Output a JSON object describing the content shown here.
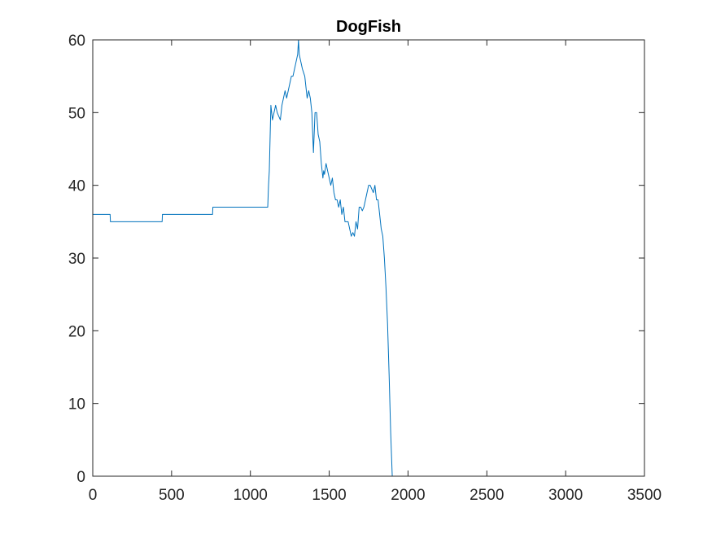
{
  "chart_data": {
    "type": "line",
    "title": "DogFish",
    "xlabel": "",
    "ylabel": "",
    "xlim": [
      0,
      3500
    ],
    "ylim": [
      0,
      60
    ],
    "xticks": [
      0,
      500,
      1000,
      1500,
      2000,
      2500,
      3000,
      3500
    ],
    "yticks": [
      0,
      10,
      20,
      30,
      40,
      50,
      60
    ],
    "xtick_labels": [
      "0",
      "500",
      "1000",
      "1500",
      "2000",
      "2500",
      "3000",
      "3500"
    ],
    "ytick_labels": [
      "0",
      "10",
      "20",
      "30",
      "40",
      "50",
      "60"
    ],
    "grid": false,
    "legend": "none",
    "colors": {
      "series": "#0072BD",
      "axes": "#262626",
      "background": "#ffffff"
    },
    "series": [
      {
        "x": [
          0,
          110,
          112,
          440,
          442,
          760,
          762,
          1110,
          1115,
          1120,
          1130,
          1140,
          1160,
          1170,
          1190,
          1200,
          1220,
          1230,
          1250,
          1260,
          1270,
          1280,
          1290,
          1300,
          1305,
          1310,
          1320,
          1330,
          1345,
          1360,
          1370,
          1380,
          1390,
          1400,
          1410,
          1420,
          1430,
          1440,
          1450,
          1460,
          1465,
          1470,
          1480,
          1490,
          1500,
          1510,
          1520,
          1530,
          1540,
          1550,
          1560,
          1570,
          1580,
          1590,
          1600,
          1610,
          1620,
          1630,
          1640,
          1650,
          1660,
          1670,
          1680,
          1690,
          1700,
          1710,
          1720,
          1730,
          1740,
          1750,
          1760,
          1770,
          1780,
          1790,
          1800,
          1810,
          1820,
          1830,
          1840,
          1850,
          1860,
          1870,
          1880,
          1890,
          1900,
          1910,
          1920,
          1930,
          1940,
          1950,
          1960,
          1970,
          1980,
          1990,
          2000,
          2010,
          2020,
          2030,
          2040,
          3080
        ],
        "values": [
          36,
          36,
          35,
          35,
          36,
          36,
          37,
          37,
          40,
          42,
          51,
          49,
          51,
          50,
          49,
          51,
          53,
          52,
          54,
          55,
          55,
          56,
          57,
          58,
          60,
          58,
          57,
          56,
          55,
          52,
          53,
          52,
          50,
          44.5,
          50,
          50,
          47,
          46,
          43,
          41,
          42,
          41.5,
          43,
          42,
          41,
          40,
          41,
          39,
          38,
          38,
          37,
          38,
          36,
          37,
          35,
          35,
          35,
          34,
          33,
          33.5,
          33,
          35,
          34,
          37,
          37,
          36.5,
          37,
          38,
          39,
          40,
          40,
          39.5,
          39,
          40,
          38,
          38,
          36,
          34,
          33,
          30,
          26,
          21,
          14,
          6,
          0,
          0,
          0,
          0,
          0,
          0,
          0,
          0,
          0,
          0,
          0,
          0,
          0,
          0,
          0,
          0
        ]
      }
    ]
  }
}
